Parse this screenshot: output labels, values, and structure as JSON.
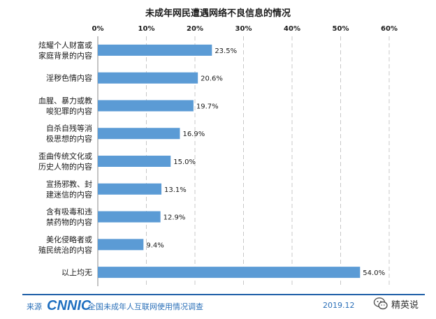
{
  "colors": {
    "bar": "#5b9bd5",
    "grid": "#c8c8c8",
    "axis": "#888888",
    "brand": "#1f6fc0",
    "footer_line": "#1f5fa8"
  },
  "chart_data": {
    "type": "bar",
    "orientation": "horizontal",
    "title": "未成年网民遭遇网络不良信息的情况",
    "categories": [
      [
        "炫耀个人财富或",
        "家庭背景的内容"
      ],
      [
        "淫秽色情内容"
      ],
      [
        "血腥、暴力或教",
        "唆犯罪的内容"
      ],
      [
        "自杀自残等消",
        "极思想的内容"
      ],
      [
        "歪曲传统文化或",
        "历史人物的内容"
      ],
      [
        "宣扬邪教、封",
        "建迷信的内容"
      ],
      [
        "含有吸毒和违",
        "禁药物的内容"
      ],
      [
        "美化侵略者或",
        "殖民统治的内容"
      ],
      [
        "以上均无"
      ]
    ],
    "values": [
      23.5,
      20.6,
      19.7,
      16.9,
      15.0,
      13.1,
      12.9,
      9.4,
      54.0
    ],
    "value_labels": [
      "23.5%",
      "20.6%",
      "19.7%",
      "16.9%",
      "15.0%",
      "13.1%",
      "12.9%",
      "9.4%",
      "54.0%"
    ],
    "xlim": [
      0,
      60
    ],
    "xticks": [
      "0%",
      "10%",
      "20%",
      "30%",
      "40%",
      "50%",
      "60%"
    ],
    "xaxis_position": "top",
    "grid": true,
    "grid_style": "dashed-vertical"
  },
  "footer": {
    "source_label": "来源",
    "logo": "CNNIC",
    "source_text": "全国未成年人互联网使用情况调查",
    "date": "2019.12",
    "wechat_name": "精英说"
  }
}
